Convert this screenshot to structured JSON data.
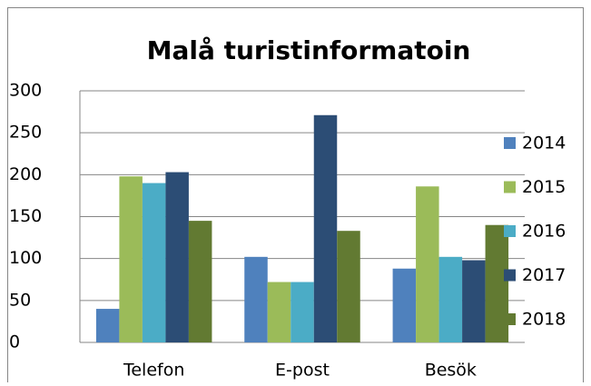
{
  "chart_data": {
    "type": "bar",
    "title": "Malå turistinformatoin",
    "categories": [
      "Telefon",
      "E-post",
      "Besök"
    ],
    "series": [
      {
        "name": "2014",
        "color": "#4f81bd",
        "values": [
          40,
          102,
          88
        ]
      },
      {
        "name": "2015",
        "color": "#9bbb59",
        "values": [
          198,
          72,
          186
        ]
      },
      {
        "name": "2016",
        "color": "#4bacc6",
        "values": [
          190,
          72,
          102
        ]
      },
      {
        "name": "2017",
        "color": "#2c4d75",
        "values": [
          203,
          271,
          98
        ]
      },
      {
        "name": "2018",
        "color": "#627a32",
        "values": [
          145,
          133,
          140
        ]
      }
    ],
    "ylim": [
      0,
      300
    ],
    "yticks": [
      0,
      50,
      100,
      150,
      200,
      250,
      300
    ],
    "grid": true,
    "legend": "right"
  }
}
